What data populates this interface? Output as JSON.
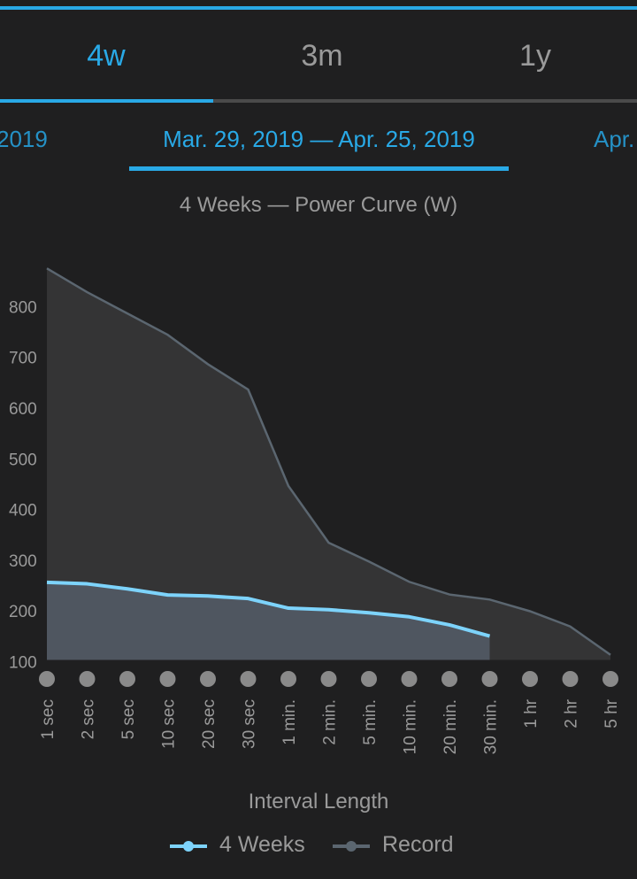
{
  "tabs": [
    {
      "label": "4w",
      "active": true
    },
    {
      "label": "3m",
      "active": false
    },
    {
      "label": "1y",
      "active": false
    }
  ],
  "date_nav": {
    "prev": "2019",
    "current": "Mar. 29, 2019 — Apr. 25, 2019",
    "next": "Apr."
  },
  "colors": {
    "accent": "#29a9e6",
    "series_4weeks": "#7dd3fb",
    "series_4weeks_fill": "#4f5660",
    "series_record": "#5b6670",
    "series_record_fill": "#343435",
    "tick_dot": "#8a8a8a",
    "text_muted": "#9a9a9a"
  },
  "chart_data": {
    "type": "area",
    "title": "4 Weeks — Power Curve (W)",
    "xlabel": "Interval Length",
    "ylabel": "",
    "categories": [
      "1 sec",
      "2 sec",
      "5 sec",
      "10 sec",
      "20 sec",
      "30 sec",
      "1 min.",
      "2 min.",
      "5 min.",
      "10 min.",
      "20 min.",
      "30 min.",
      "1 hr",
      "2 hr",
      "5 hr"
    ],
    "yticks": [
      100,
      200,
      300,
      400,
      500,
      600,
      700,
      800
    ],
    "ylim": [
      100,
      870
    ],
    "grid": false,
    "legend_position": "bottom",
    "series": [
      {
        "name": "4 Weeks",
        "values": [
          253,
          250,
          240,
          228,
          226,
          221,
          202,
          199,
          193,
          185,
          169,
          147,
          null,
          null,
          null
        ]
      },
      {
        "name": "Record",
        "values": [
          872,
          825,
          783,
          741,
          683,
          633,
          443,
          331,
          294,
          254,
          229,
          219,
          196,
          166,
          110
        ]
      }
    ]
  }
}
